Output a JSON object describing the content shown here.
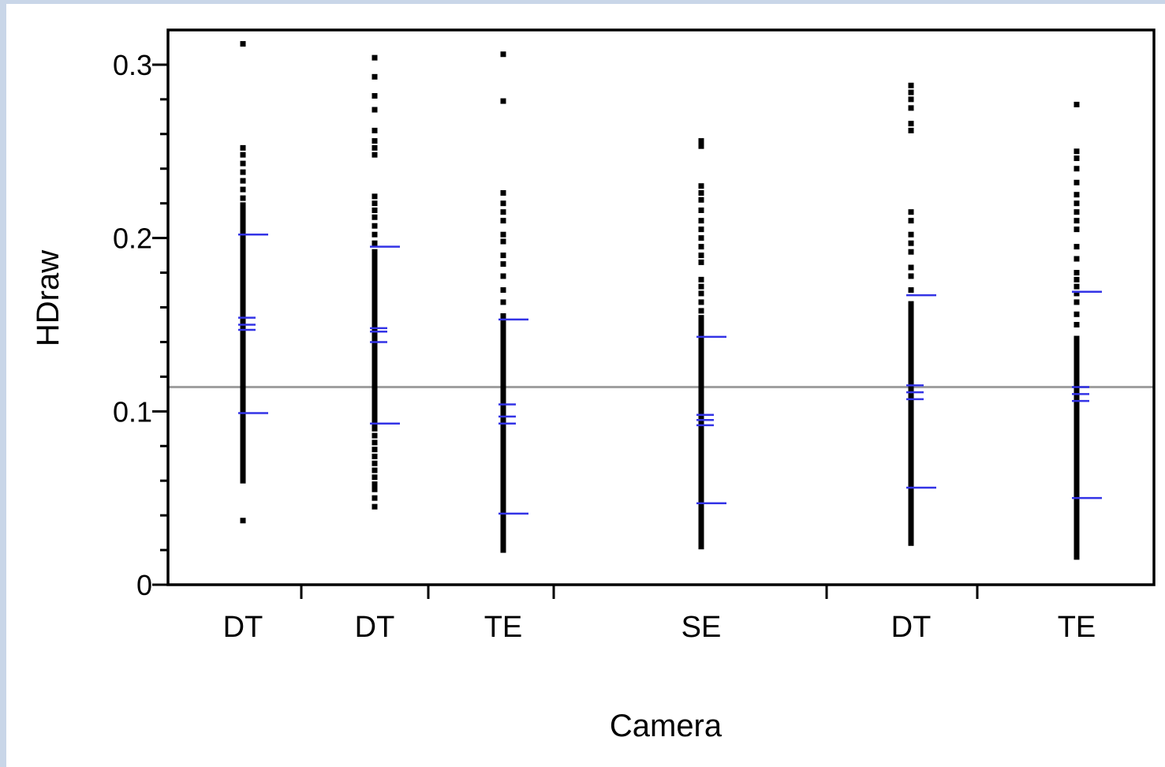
{
  "chart_data": {
    "type": "scatter",
    "subtype": "one-way strip plot with mean and std-dev ticks",
    "xlabel": "Camera",
    "ylabel": "HDraw",
    "ylim": [
      0,
      0.32
    ],
    "yticks": [
      0,
      0.1,
      0.2,
      0.3
    ],
    "ytick_labels": [
      "0",
      "0.1",
      "0.2",
      "0.3"
    ],
    "grand_mean": 0.114,
    "grid": false,
    "colors": {
      "points": "#000000",
      "stat_lines": "#3333e6",
      "grand_mean_line": "#a0a0a0"
    },
    "groups": [
      {
        "label": "DT",
        "mean": 0.15,
        "ci": [
          0.147,
          0.154
        ],
        "sd_band": [
          0.099,
          0.202
        ],
        "points": [
          0.037,
          0.06,
          0.063,
          0.066,
          0.069,
          0.072,
          0.075,
          0.078,
          0.081,
          0.084,
          0.087,
          0.09,
          0.093,
          0.096,
          0.099,
          0.102,
          0.105,
          0.108,
          0.111,
          0.114,
          0.117,
          0.12,
          0.123,
          0.126,
          0.129,
          0.132,
          0.135,
          0.138,
          0.141,
          0.144,
          0.147,
          0.15,
          0.153,
          0.156,
          0.159,
          0.162,
          0.165,
          0.168,
          0.171,
          0.174,
          0.177,
          0.18,
          0.183,
          0.186,
          0.189,
          0.192,
          0.195,
          0.198,
          0.201,
          0.204,
          0.207,
          0.21,
          0.213,
          0.216,
          0.219,
          0.223,
          0.228,
          0.233,
          0.238,
          0.243,
          0.248,
          0.252,
          0.312
        ]
      },
      {
        "label": "DT",
        "mean": 0.146,
        "ci": [
          0.14,
          0.148
        ],
        "sd_band": [
          0.093,
          0.195
        ],
        "points": [
          0.045,
          0.05,
          0.055,
          0.058,
          0.062,
          0.066,
          0.07,
          0.074,
          0.078,
          0.082,
          0.086,
          0.09,
          0.093,
          0.096,
          0.099,
          0.102,
          0.105,
          0.108,
          0.111,
          0.114,
          0.117,
          0.12,
          0.123,
          0.126,
          0.129,
          0.132,
          0.135,
          0.138,
          0.141,
          0.144,
          0.147,
          0.15,
          0.153,
          0.156,
          0.159,
          0.162,
          0.165,
          0.168,
          0.171,
          0.174,
          0.177,
          0.18,
          0.183,
          0.186,
          0.189,
          0.192,
          0.197,
          0.202,
          0.207,
          0.212,
          0.216,
          0.22,
          0.224,
          0.248,
          0.252,
          0.256,
          0.262,
          0.274,
          0.282,
          0.293,
          0.304
        ]
      },
      {
        "label": "TE",
        "mean": 0.097,
        "ci": [
          0.093,
          0.104
        ],
        "sd_band": [
          0.041,
          0.153
        ],
        "points": [
          0.02,
          0.023,
          0.026,
          0.029,
          0.032,
          0.035,
          0.038,
          0.041,
          0.044,
          0.047,
          0.05,
          0.053,
          0.056,
          0.059,
          0.062,
          0.065,
          0.068,
          0.071,
          0.074,
          0.077,
          0.08,
          0.083,
          0.086,
          0.089,
          0.092,
          0.095,
          0.098,
          0.101,
          0.104,
          0.107,
          0.11,
          0.113,
          0.116,
          0.119,
          0.122,
          0.125,
          0.128,
          0.131,
          0.134,
          0.137,
          0.14,
          0.143,
          0.146,
          0.149,
          0.152,
          0.155,
          0.163,
          0.17,
          0.178,
          0.185,
          0.19,
          0.198,
          0.202,
          0.21,
          0.215,
          0.22,
          0.226,
          0.279,
          0.306
        ]
      },
      {
        "label": "SE",
        "mean": 0.095,
        "ci": [
          0.092,
          0.098
        ],
        "sd_band": [
          0.047,
          0.143
        ],
        "points": [
          0.022,
          0.025,
          0.028,
          0.031,
          0.034,
          0.037,
          0.04,
          0.043,
          0.046,
          0.049,
          0.052,
          0.055,
          0.058,
          0.061,
          0.064,
          0.067,
          0.07,
          0.073,
          0.076,
          0.079,
          0.082,
          0.085,
          0.088,
          0.091,
          0.094,
          0.097,
          0.1,
          0.103,
          0.106,
          0.109,
          0.112,
          0.115,
          0.118,
          0.121,
          0.124,
          0.127,
          0.13,
          0.133,
          0.136,
          0.139,
          0.142,
          0.145,
          0.148,
          0.151,
          0.154,
          0.158,
          0.163,
          0.168,
          0.172,
          0.176,
          0.186,
          0.19,
          0.195,
          0.2,
          0.205,
          0.21,
          0.216,
          0.222,
          0.226,
          0.23,
          0.253,
          0.256
        ]
      },
      {
        "label": "DT",
        "mean": 0.111,
        "ci": [
          0.107,
          0.115
        ],
        "sd_band": [
          0.056,
          0.167
        ],
        "points": [
          0.024,
          0.027,
          0.03,
          0.033,
          0.036,
          0.039,
          0.042,
          0.045,
          0.048,
          0.051,
          0.054,
          0.057,
          0.06,
          0.063,
          0.066,
          0.069,
          0.072,
          0.075,
          0.078,
          0.081,
          0.084,
          0.087,
          0.09,
          0.093,
          0.096,
          0.099,
          0.102,
          0.105,
          0.108,
          0.111,
          0.114,
          0.117,
          0.12,
          0.123,
          0.126,
          0.129,
          0.132,
          0.135,
          0.138,
          0.141,
          0.144,
          0.147,
          0.15,
          0.153,
          0.156,
          0.159,
          0.162,
          0.17,
          0.178,
          0.183,
          0.192,
          0.197,
          0.202,
          0.21,
          0.215,
          0.262,
          0.266,
          0.275,
          0.28,
          0.284,
          0.288
        ]
      },
      {
        "label": "TE",
        "mean": 0.11,
        "ci": [
          0.106,
          0.114
        ],
        "sd_band": [
          0.05,
          0.169
        ],
        "points": [
          0.016,
          0.019,
          0.022,
          0.025,
          0.028,
          0.031,
          0.034,
          0.037,
          0.04,
          0.043,
          0.046,
          0.049,
          0.052,
          0.055,
          0.058,
          0.061,
          0.064,
          0.067,
          0.07,
          0.073,
          0.076,
          0.079,
          0.082,
          0.085,
          0.088,
          0.091,
          0.094,
          0.097,
          0.1,
          0.103,
          0.106,
          0.109,
          0.112,
          0.115,
          0.118,
          0.121,
          0.124,
          0.127,
          0.13,
          0.133,
          0.136,
          0.139,
          0.142,
          0.15,
          0.156,
          0.163,
          0.168,
          0.172,
          0.176,
          0.18,
          0.188,
          0.195,
          0.205,
          0.21,
          0.215,
          0.22,
          0.225,
          0.232,
          0.24,
          0.246,
          0.25,
          0.277
        ]
      }
    ]
  }
}
